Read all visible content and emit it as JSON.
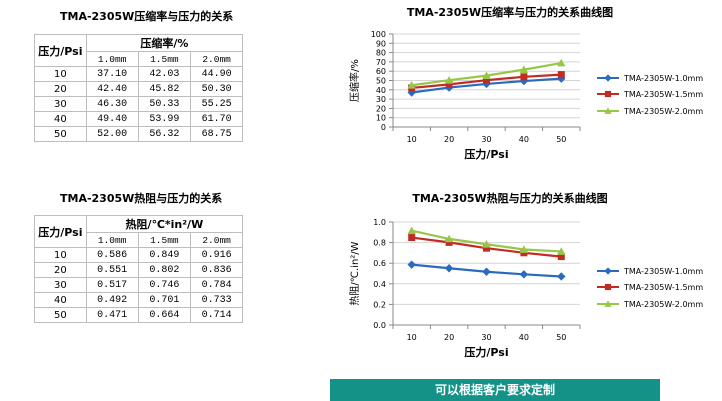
{
  "table1": {
    "title": "TMA-2305W压缩率与压力的关系",
    "pressure_header": "压力/Psi",
    "group_header": "压缩率/%",
    "columns": [
      "1.0mm",
      "1.5mm",
      "2.0mm"
    ],
    "rows": [
      {
        "p": "10",
        "v": [
          "37.10",
          "42.03",
          "44.90"
        ]
      },
      {
        "p": "20",
        "v": [
          "42.40",
          "45.82",
          "50.30"
        ]
      },
      {
        "p": "30",
        "v": [
          "46.30",
          "50.33",
          "55.25"
        ]
      },
      {
        "p": "40",
        "v": [
          "49.40",
          "53.99",
          "61.70"
        ]
      },
      {
        "p": "50",
        "v": [
          "52.00",
          "56.32",
          "68.75"
        ]
      }
    ]
  },
  "table2": {
    "title": "TMA-2305W热阻与压力的关系",
    "pressure_header": "压力/Psi",
    "group_header": "热阻/℃*in²/W",
    "columns": [
      "1.0mm",
      "1.5mm",
      "2.0mm"
    ],
    "rows": [
      {
        "p": "10",
        "v": [
          "0.586",
          "0.849",
          "0.916"
        ]
      },
      {
        "p": "20",
        "v": [
          "0.551",
          "0.802",
          "0.836"
        ]
      },
      {
        "p": "30",
        "v": [
          "0.517",
          "0.746",
          "0.784"
        ]
      },
      {
        "p": "40",
        "v": [
          "0.492",
          "0.701",
          "0.733"
        ]
      },
      {
        "p": "50",
        "v": [
          "0.471",
          "0.664",
          "0.714"
        ]
      }
    ]
  },
  "chart_data": [
    {
      "type": "line",
      "title": "TMA-2305W压缩率与压力的关系曲线图",
      "xlabel": "压力/Psi",
      "ylabel": "压缩率/%",
      "x": [
        10,
        20,
        30,
        40,
        50
      ],
      "yticks": [
        "0",
        "10",
        "20",
        "30",
        "40",
        "50",
        "60",
        "70",
        "80",
        "90",
        "100"
      ],
      "ylim": [
        0,
        100
      ],
      "grid": true,
      "legend": "right",
      "series": [
        {
          "name": "TMA-2305W-1.0mm",
          "color": "#2a6bbf",
          "marker": "diamond",
          "values": [
            37.1,
            42.4,
            46.3,
            49.4,
            52.0
          ]
        },
        {
          "name": "TMA-2305W-1.5mm",
          "color": "#c22b24",
          "marker": "square",
          "values": [
            42.03,
            45.82,
            50.33,
            53.99,
            56.32
          ]
        },
        {
          "name": "TMA-2305W-2.0mm",
          "color": "#98c647",
          "marker": "triangle",
          "values": [
            44.9,
            50.3,
            55.25,
            61.7,
            68.75
          ]
        }
      ]
    },
    {
      "type": "line",
      "title": "TMA-2305W热阻与压力的关系曲线图",
      "xlabel": "压力/Psi",
      "ylabel": "热阻/℃.in²/W",
      "x": [
        10,
        20,
        30,
        40,
        50
      ],
      "yticks": [
        "0.0",
        "0.2",
        "0.4",
        "0.6",
        "0.8",
        "1.0"
      ],
      "ylim": [
        0,
        1.0
      ],
      "grid": true,
      "legend": "right",
      "series": [
        {
          "name": "TMA-2305W-1.0mm",
          "color": "#2a6bbf",
          "marker": "diamond",
          "values": [
            0.586,
            0.551,
            0.517,
            0.492,
            0.471
          ]
        },
        {
          "name": "TMA-2305W-1.5mm",
          "color": "#c22b24",
          "marker": "square",
          "values": [
            0.849,
            0.802,
            0.746,
            0.701,
            0.664
          ]
        },
        {
          "name": "TMA-2305W-2.0mm",
          "color": "#98c647",
          "marker": "triangle",
          "values": [
            0.916,
            0.836,
            0.784,
            0.733,
            0.714
          ]
        }
      ]
    }
  ],
  "footer": {
    "text": "可以根据客户要求定制",
    "color": "#159288"
  }
}
